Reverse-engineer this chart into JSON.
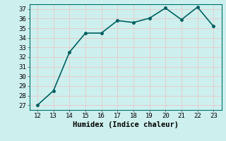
{
  "x": [
    12,
    13,
    14,
    15,
    16,
    17,
    18,
    19,
    20,
    21,
    22,
    23
  ],
  "y": [
    27.0,
    28.5,
    32.5,
    34.5,
    34.5,
    35.8,
    35.6,
    36.05,
    37.1,
    35.9,
    37.2,
    35.2
  ],
  "line_color": "#006060",
  "marker": "o",
  "marker_size": 2.5,
  "background_color": "#cdf0ee",
  "grid_color": "#e8c8c8",
  "xlabel": "Humidex (Indice chaleur)",
  "xlim": [
    11.5,
    23.5
  ],
  "ylim": [
    26.5,
    37.5
  ],
  "yticks": [
    27,
    28,
    29,
    30,
    31,
    32,
    33,
    34,
    35,
    36,
    37
  ],
  "xticks": [
    12,
    13,
    14,
    15,
    16,
    17,
    18,
    19,
    20,
    21,
    22,
    23
  ],
  "tick_fontsize": 6.5,
  "xlabel_fontsize": 7.5,
  "line_width": 1.2
}
